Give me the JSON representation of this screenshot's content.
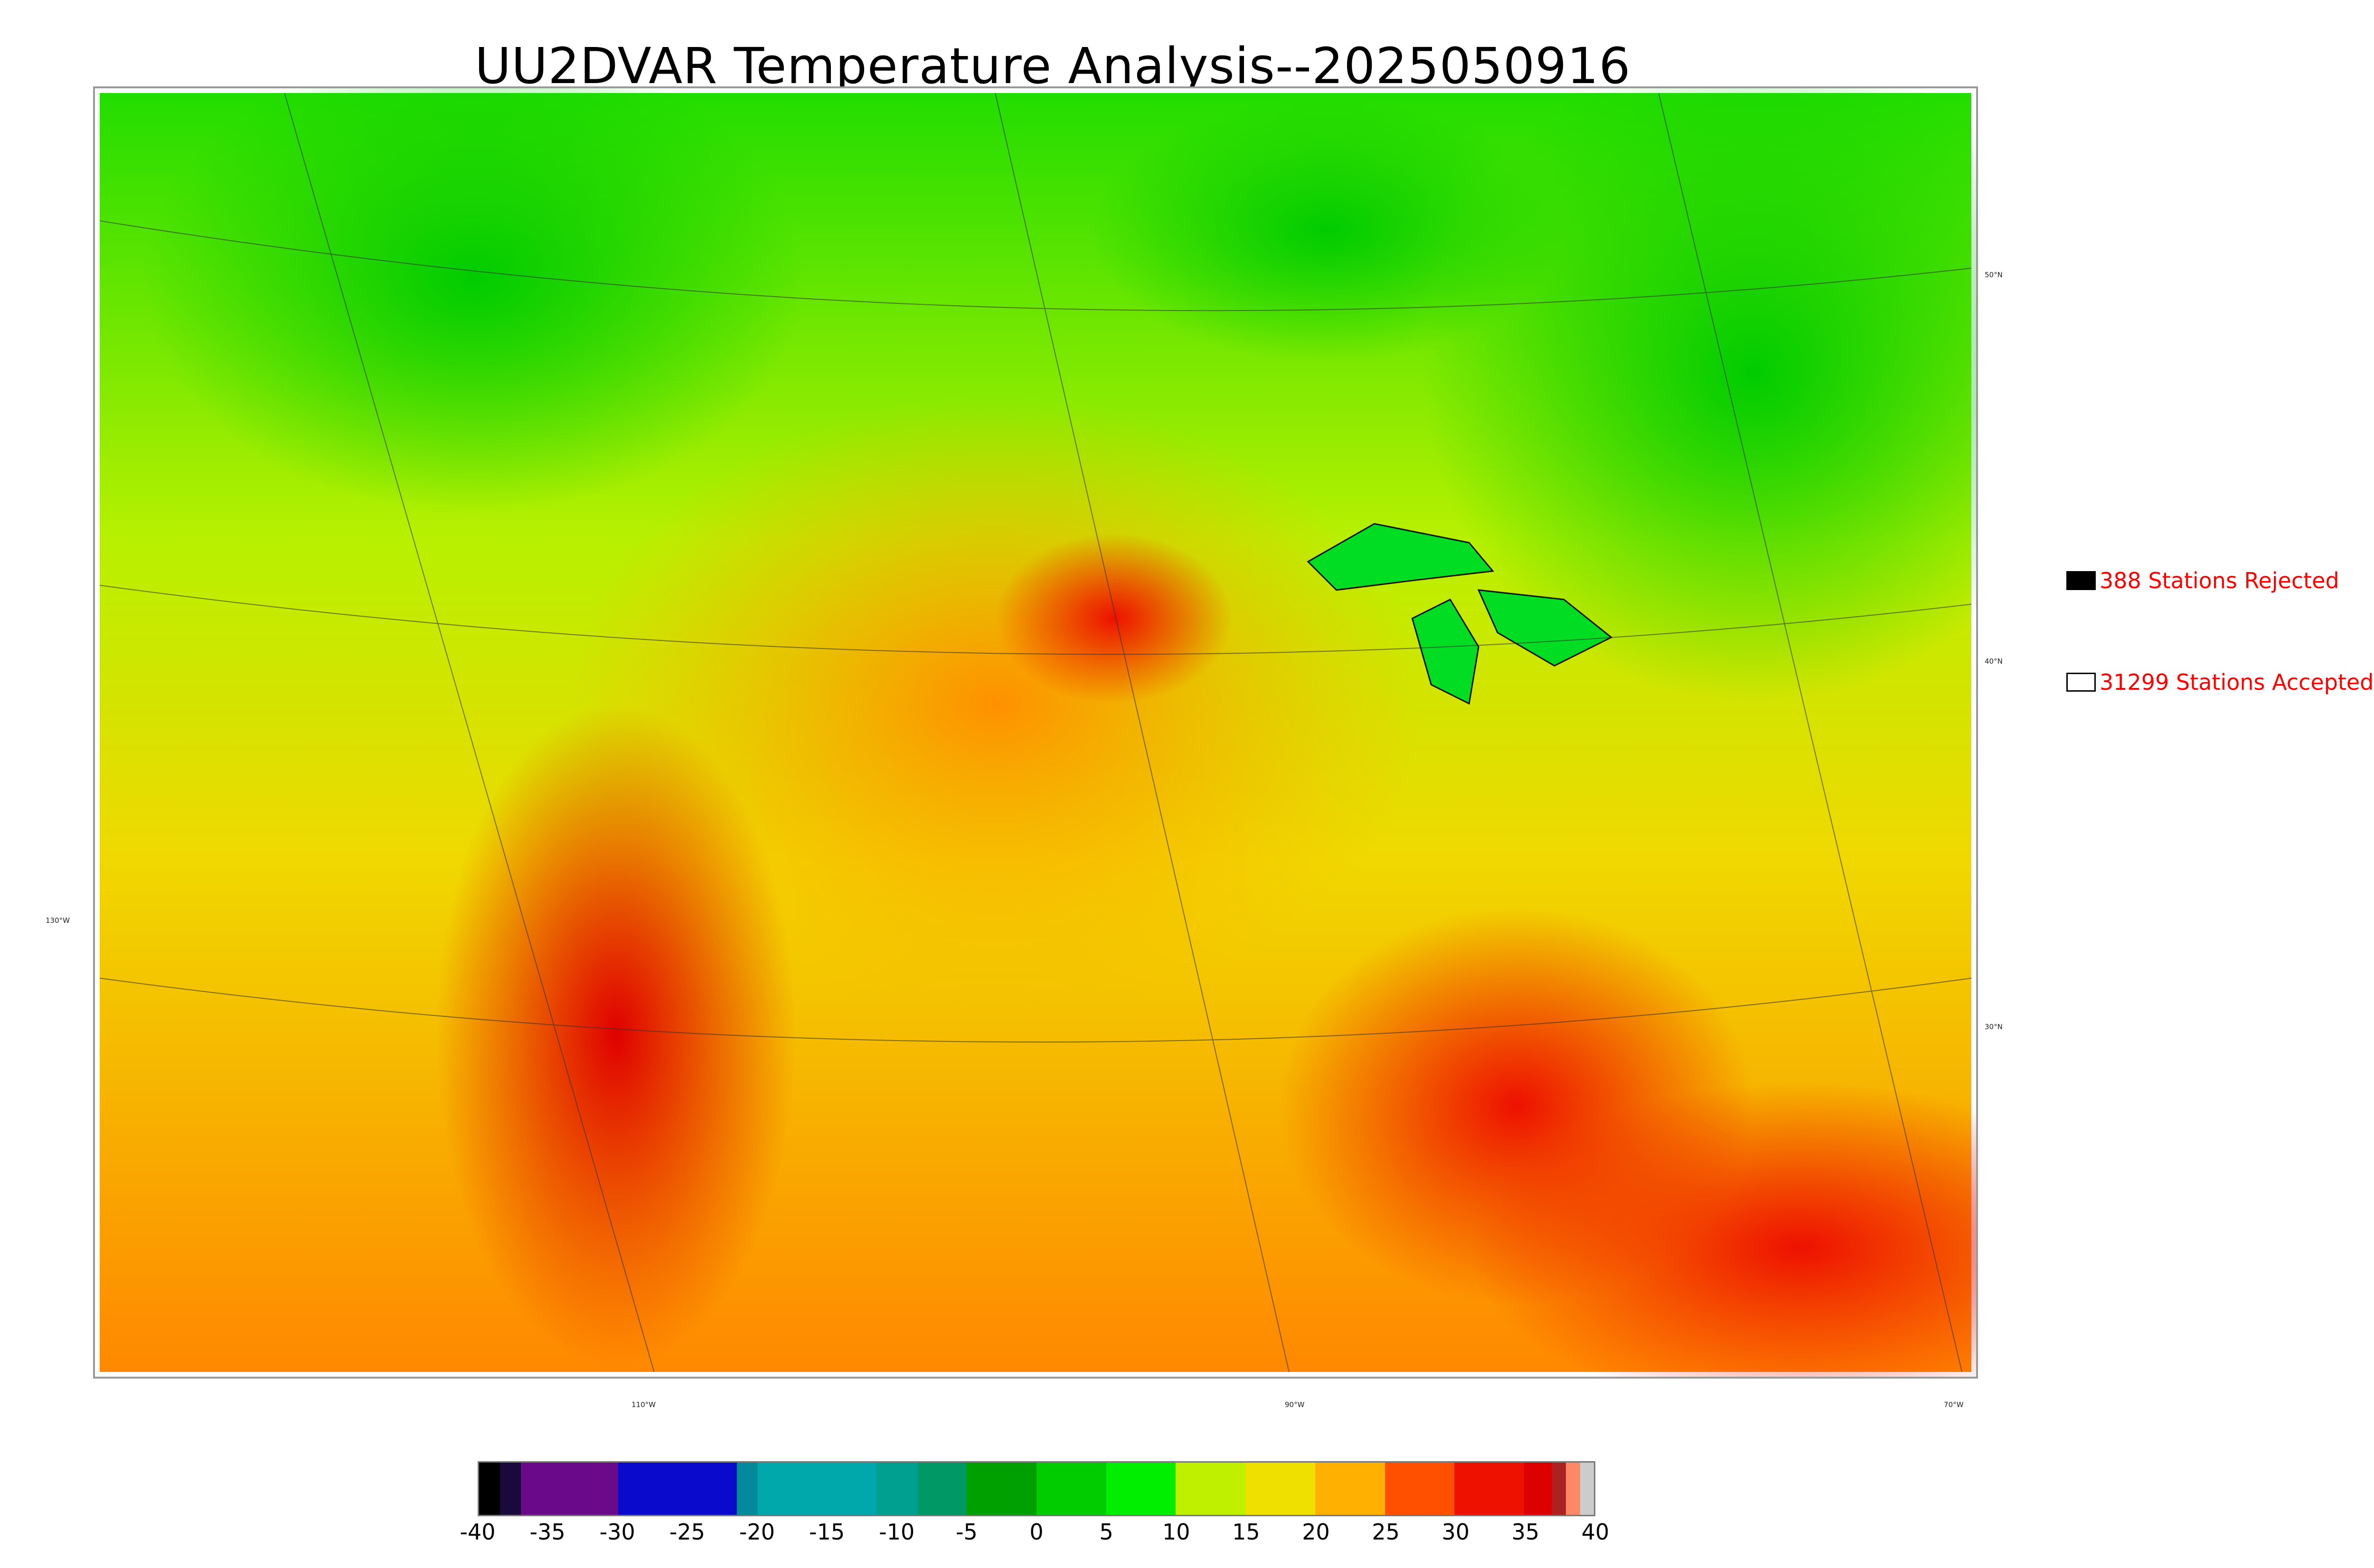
{
  "title": "UU2DVAR Temperature Analysis--2025050916",
  "map": {
    "type": "temperature-analysis",
    "lat_labels": [
      "50°N",
      "40°N",
      "30°N"
    ],
    "lon_labels": [
      "130°W",
      "110°W",
      "90°W",
      "70°W"
    ]
  },
  "legend": {
    "rejected": {
      "label": "388 Stations Rejected",
      "count": 388,
      "color": "#000000"
    },
    "accepted": {
      "label": "31299 Stations Accepted",
      "count": 31299,
      "color": "#ffffff"
    }
  },
  "colorbar": {
    "range": [
      -40,
      40
    ],
    "ticks": [
      "-40",
      "-35",
      "-30",
      "-25",
      "-20",
      "-15",
      "-10",
      "-5",
      "0",
      "5",
      "10",
      "15",
      "20",
      "25",
      "30",
      "35",
      "40"
    ],
    "segments": [
      {
        "from": -40,
        "to": -38.5,
        "color": "#000000"
      },
      {
        "from": -38.5,
        "to": -37,
        "color": "#1a0a3c"
      },
      {
        "from": -37,
        "to": -30,
        "color": "#6a0a8a"
      },
      {
        "from": -30,
        "to": -21.5,
        "color": "#0a0acc"
      },
      {
        "from": -21.5,
        "to": -20,
        "color": "#008a9a"
      },
      {
        "from": -20,
        "to": -11.5,
        "color": "#00a8ac"
      },
      {
        "from": -11.5,
        "to": -8.5,
        "color": "#00a090"
      },
      {
        "from": -8.5,
        "to": -5,
        "color": "#009966"
      },
      {
        "from": -5,
        "to": 0,
        "color": "#00a000"
      },
      {
        "from": 0,
        "to": 5,
        "color": "#00cc00"
      },
      {
        "from": 5,
        "to": 10,
        "color": "#00ee00"
      },
      {
        "from": 10,
        "to": 15,
        "color": "#bff000"
      },
      {
        "from": 15,
        "to": 20,
        "color": "#f0e000"
      },
      {
        "from": 20,
        "to": 25,
        "color": "#ffb000"
      },
      {
        "from": 25,
        "to": 30,
        "color": "#ff5000"
      },
      {
        "from": 30,
        "to": 35,
        "color": "#ee1100"
      },
      {
        "from": 35,
        "to": 37,
        "color": "#dd0000"
      },
      {
        "from": 37,
        "to": 38,
        "color": "#aa2222"
      },
      {
        "from": 38,
        "to": 39,
        "color": "#ff8866"
      },
      {
        "from": 39,
        "to": 40,
        "color": "#cccccc"
      }
    ]
  }
}
